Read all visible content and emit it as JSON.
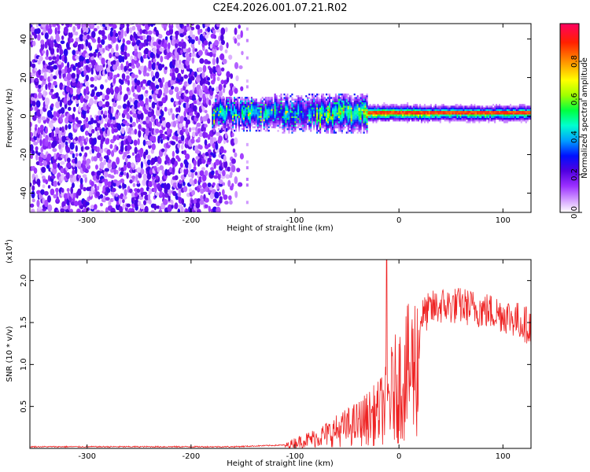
{
  "title": "C2E4.2026.001.07.21.R02",
  "chart_data": [
    {
      "type": "heatmap",
      "name": "spectrogram",
      "xlabel": "Height of straight line (km)",
      "ylabel": "Frequency (Hz)",
      "xlim": [
        -355,
        127
      ],
      "ylim": [
        -50,
        48
      ],
      "xticks": [
        -300,
        -200,
        -100,
        0,
        100
      ],
      "yticks": [
        -40,
        -20,
        0,
        20,
        40
      ],
      "colorbar": {
        "label": "Normalized spectral amplitude",
        "range": [
          0.0,
          1.0
        ],
        "ticks": [
          0.0,
          0.2,
          0.4,
          0.6,
          0.8
        ],
        "tick_labels": [
          "0.0",
          "0.2",
          "0.4",
          "0.6",
          "0.8"
        ],
        "colors": [
          "#ffffff",
          "#d8a8ff",
          "#9b30ff",
          "#5000e0",
          "#0010ff",
          "#00a0ff",
          "#00ffd0",
          "#00ff40",
          "#a0ff00",
          "#ffff00",
          "#ff9000",
          "#ff2000",
          "#ff0060"
        ]
      },
      "features": {
        "noise_region_x": [
          -355,
          -150
        ],
        "band_center_hz": 1,
        "strong_band_x": [
          -30,
          127
        ]
      }
    },
    {
      "type": "line",
      "name": "snr",
      "xlabel": "Height of straight line (km)",
      "ylabel": "SNR (10 * v/v)",
      "y_multiplier": "(x10^4)",
      "y_multiplier_base": "(x10",
      "y_multiplier_exp": "4",
      "y_multiplier_close": ")",
      "xlim": [
        -355,
        127
      ],
      "ylim": [
        0,
        2.25
      ],
      "xticks": [
        -300,
        -200,
        -100,
        0,
        100
      ],
      "yticks": [
        0.5,
        1.0,
        1.5,
        2.0
      ],
      "ytick_labels": [
        "0.5",
        "1.0",
        "1.5",
        "2.0"
      ],
      "line_color": "#ee2222",
      "envelope_x": [
        -355,
        -160,
        -110,
        -100,
        -80,
        -60,
        -40,
        -20,
        -15,
        -10,
        0,
        10,
        20,
        30,
        40,
        60,
        80,
        100,
        110,
        127
      ],
      "envelope_y": [
        0.02,
        0.02,
        0.04,
        0.1,
        0.18,
        0.3,
        0.42,
        0.6,
        0.7,
        0.85,
        1.1,
        1.3,
        1.55,
        1.65,
        1.7,
        1.7,
        1.65,
        1.6,
        1.55,
        1.45
      ],
      "spike_x": -12,
      "spike_y": 2.25
    }
  ]
}
